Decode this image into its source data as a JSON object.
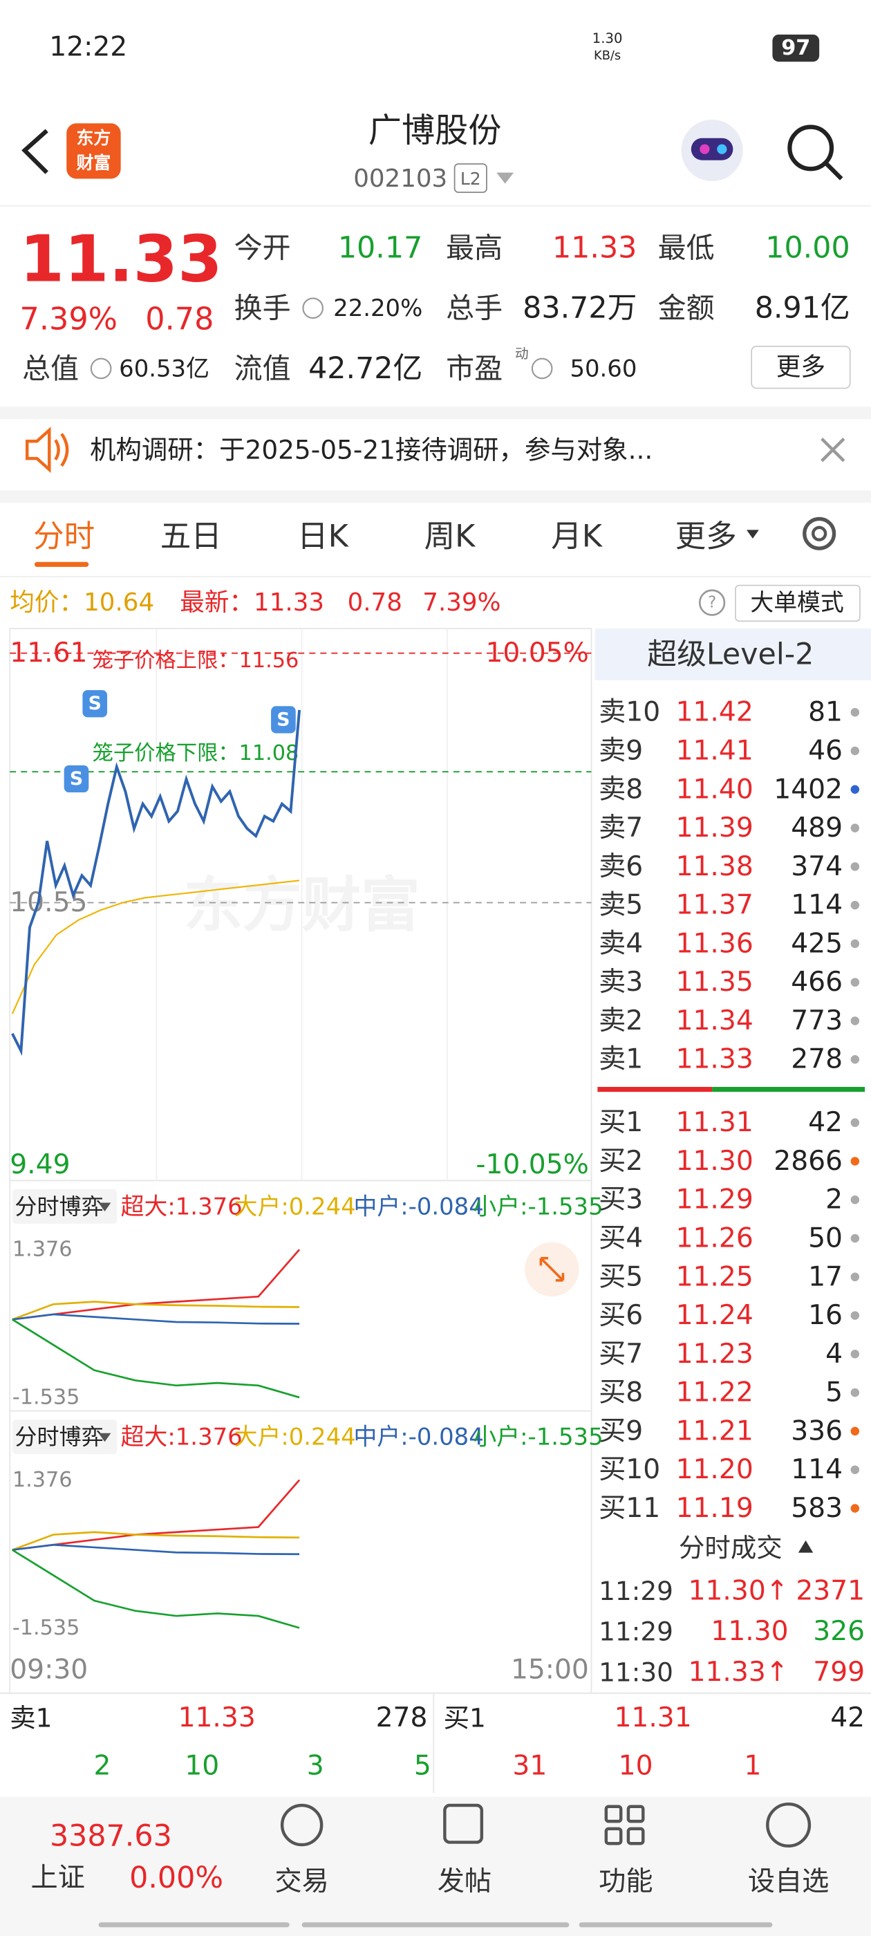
{
  "status_bar": {
    "time": "12:22",
    "net_speed": "1.30",
    "net_unit": "KB/s",
    "battery": "97"
  },
  "header": {
    "logo_top": "东方",
    "logo_bottom": "财富",
    "title": "广博股份",
    "code": "002103",
    "badge": "L2"
  },
  "quote": {
    "price": "11.33",
    "change_pct": "7.39%",
    "change": "0.78",
    "fields": [
      {
        "label": "今开",
        "value": "10.17"
      },
      {
        "label": "最高",
        "value": "11.33"
      },
      {
        "label": "最低",
        "value": "10.00"
      },
      {
        "label": "换手",
        "value": "22.20%"
      },
      {
        "label": "总手",
        "value": "83.72万"
      },
      {
        "label": "金额",
        "value": "8.91亿"
      },
      {
        "label": "总值",
        "value": "60.53亿"
      },
      {
        "label": "流值",
        "value": "42.72亿"
      },
      {
        "label": "市盈",
        "sup": "动",
        "value": "50.60"
      }
    ],
    "more": "更多"
  },
  "notice": "机构调研：于2025-05-21接待调研，参与对象...",
  "tabs": [
    "分时",
    "五日",
    "日K",
    "周K",
    "月K",
    "更多"
  ],
  "info_line": {
    "avg": "均价：10.64",
    "latest": "最新：11.33",
    "change": "0.78",
    "change_pct": "7.39%",
    "mode": "大单模式"
  },
  "chart_data": [
    {
      "type": "line",
      "watermark": "东方财富",
      "ylim": [
        9.49,
        11.61
      ],
      "yticks": [
        11.61,
        10.55,
        9.49
      ],
      "y2lim": [
        -10.05,
        10.05
      ],
      "y2ticks": [
        {
          "value": 10.05,
          "label": "10.05%"
        },
        {
          "value": -10.05,
          "label": "-10.05%"
        }
      ],
      "x_labels": [
        "09:30",
        "15:00"
      ],
      "annotations": [
        {
          "text": "笼子价格上限：11.56",
          "value": 11.56,
          "color": "#e8272a"
        },
        {
          "text": "笼子价格下限：11.08",
          "value": 11.08,
          "color": "#17a02e"
        }
      ],
      "series": [
        {
          "color": "#2f64b0",
          "values": [
            10.02,
            9.95,
            10.45,
            10.55,
            10.8,
            10.62,
            10.7,
            10.58,
            10.66,
            10.62,
            10.78,
            10.95,
            11.1,
            11.0,
            10.85,
            10.95,
            10.9,
            10.98,
            10.88,
            10.92,
            11.05,
            10.95,
            10.88,
            11.02,
            10.96,
            11.0,
            10.9,
            10.85,
            10.82,
            10.9,
            10.88,
            10.95,
            10.92,
            11.33
          ]
        },
        {
          "color": "#f0b400",
          "values": [
            10.1,
            10.3,
            10.42,
            10.48,
            10.52,
            10.55,
            10.57,
            10.58,
            10.59,
            10.6,
            10.61,
            10.62,
            10.63,
            10.64
          ]
        }
      ]
    },
    {
      "type": "line",
      "header": "分时博弈",
      "ylim": [
        -1.535,
        1.376
      ],
      "yticks": [
        1.376,
        -1.535
      ],
      "series": [
        {
          "name": "超大:1.376",
          "color": "#e8272a",
          "values": [
            0,
            0.1,
            0.2,
            0.3,
            0.35,
            0.4,
            0.45,
            1.376
          ]
        },
        {
          "name": "大户:0.244",
          "color": "#e0b000",
          "values": [
            0,
            0.3,
            0.35,
            0.3,
            0.28,
            0.27,
            0.25,
            0.244
          ]
        },
        {
          "name": "中户:-0.084",
          "color": "#2f64b0",
          "values": [
            0,
            0.1,
            0.05,
            0,
            -0.05,
            -0.06,
            -0.08,
            -0.084
          ]
        },
        {
          "name": "小户:-1.535",
          "color": "#17a02e",
          "values": [
            0,
            -0.5,
            -1.0,
            -1.2,
            -1.3,
            -1.25,
            -1.3,
            -1.535
          ]
        }
      ]
    },
    {
      "type": "line",
      "header": "分时博弈",
      "ylim": [
        -1.535,
        1.376
      ],
      "yticks": [
        1.376,
        -1.535
      ],
      "series": [
        {
          "name": "超大:1.376",
          "color": "#e8272a",
          "values": [
            0,
            0.1,
            0.2,
            0.3,
            0.35,
            0.4,
            0.45,
            1.376
          ]
        },
        {
          "name": "大户:0.244",
          "color": "#e0b000",
          "values": [
            0,
            0.3,
            0.35,
            0.3,
            0.28,
            0.27,
            0.25,
            0.244
          ]
        },
        {
          "name": "中户:-0.084",
          "color": "#2f64b0",
          "values": [
            0,
            0.1,
            0.05,
            0,
            -0.05,
            -0.06,
            -0.08,
            -0.084
          ]
        },
        {
          "name": "小户:-1.535",
          "color": "#17a02e",
          "values": [
            0,
            -0.5,
            -1.0,
            -1.2,
            -1.3,
            -1.25,
            -1.3,
            -1.535
          ]
        }
      ]
    }
  ],
  "order_book": {
    "title": "超级Level-2",
    "asks": [
      {
        "label": "卖10",
        "price": "11.42",
        "volume": "81",
        "dot": "#aaaaaa"
      },
      {
        "label": "卖9",
        "price": "11.41",
        "volume": "46",
        "dot": "#aaaaaa"
      },
      {
        "label": "卖8",
        "price": "11.40",
        "volume": "1402",
        "dot": "#2f64d0"
      },
      {
        "label": "卖7",
        "price": "11.39",
        "volume": "489",
        "dot": "#aaaaaa"
      },
      {
        "label": "卖6",
        "price": "11.38",
        "volume": "374",
        "dot": "#aaaaaa"
      },
      {
        "label": "卖5",
        "price": "11.37",
        "volume": "114",
        "dot": "#aaaaaa"
      },
      {
        "label": "卖4",
        "price": "11.36",
        "volume": "425",
        "dot": "#aaaaaa"
      },
      {
        "label": "卖3",
        "price": "11.35",
        "volume": "466",
        "dot": "#aaaaaa"
      },
      {
        "label": "卖2",
        "price": "11.34",
        "volume": "773",
        "dot": "#aaaaaa"
      },
      {
        "label": "卖1",
        "price": "11.33",
        "volume": "278",
        "dot": "#aaaaaa"
      }
    ],
    "bids": [
      {
        "label": "买1",
        "price": "11.31",
        "volume": "42",
        "dot": "#aaaaaa"
      },
      {
        "label": "买2",
        "price": "11.30",
        "volume": "2866",
        "dot": "#f06a1a"
      },
      {
        "label": "买3",
        "price": "11.29",
        "volume": "2",
        "dot": "#aaaaaa"
      },
      {
        "label": "买4",
        "price": "11.26",
        "volume": "50",
        "dot": "#aaaaaa"
      },
      {
        "label": "买5",
        "price": "11.25",
        "volume": "17",
        "dot": "#aaaaaa"
      },
      {
        "label": "买6",
        "price": "11.24",
        "volume": "16",
        "dot": "#aaaaaa"
      },
      {
        "label": "买7",
        "price": "11.23",
        "volume": "4",
        "dot": "#aaaaaa"
      },
      {
        "label": "买8",
        "price": "11.22",
        "volume": "5",
        "dot": "#aaaaaa"
      },
      {
        "label": "买9",
        "price": "11.21",
        "volume": "336",
        "dot": "#f06a1a"
      },
      {
        "label": "买10",
        "price": "11.20",
        "volume": "114",
        "dot": "#aaaaaa"
      },
      {
        "label": "买11",
        "price": "11.19",
        "volume": "583",
        "dot": "#f06a1a"
      }
    ]
  },
  "trades": {
    "title": "分时成交",
    "rows": [
      {
        "time": "11:29",
        "price": "11.30↑",
        "volume": "2371"
      },
      {
        "time": "11:29",
        "price": "11.30",
        "volume": "326"
      },
      {
        "time": "11:30",
        "price": "11.33↑",
        "volume": "799"
      }
    ]
  },
  "summary": {
    "sell_label": "卖1",
    "sell_price": "11.33",
    "sell_volume": "278",
    "buy_label": "买1",
    "buy_price": "11.31",
    "buy_volume": "42",
    "sell_counts": [
      "2",
      "10",
      "3",
      "5"
    ],
    "buy_counts": [
      "31",
      "10",
      "1"
    ]
  },
  "nav": {
    "index_value": "3387.63",
    "index_name": "上证",
    "index_change": "0.00%",
    "items": [
      "交易",
      "发帖",
      "功能",
      "设自选"
    ]
  }
}
